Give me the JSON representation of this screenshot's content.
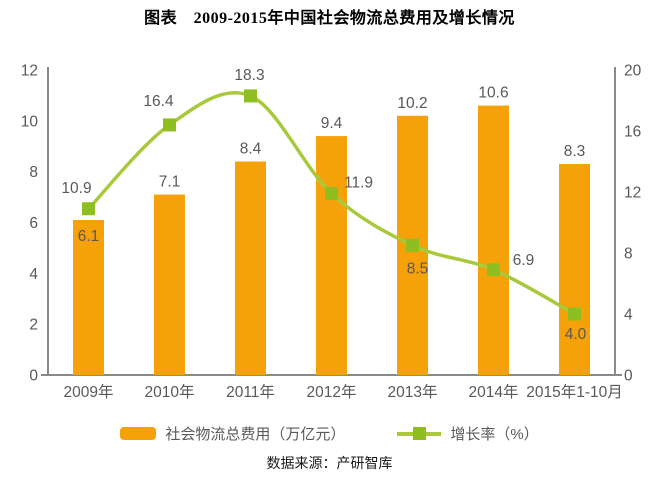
{
  "title": "图表　2009-2015年中国社会物流总费用及增长情况",
  "source": "数据来源：产研智库",
  "colors": {
    "bar": "#F4A10A",
    "line": "#A9C93C",
    "marker": "#8EBE20",
    "axis": "#8A8A8A",
    "tick_text": "#595959",
    "title_text": "#000000"
  },
  "chart_data": {
    "type": "bar",
    "subtype": "combo-bar-line-dual-axis",
    "title": "图表　2009-2015年中国社会物流总费用及增长情况",
    "categories": [
      "2009年",
      "2010年",
      "2011年",
      "2012年",
      "2013年",
      "2014年",
      "2015年1-10月"
    ],
    "series": [
      {
        "name": "社会物流总费用（万亿元）",
        "type": "bar",
        "axis": "left",
        "values": [
          6.1,
          7.1,
          8.4,
          9.4,
          10.2,
          10.6,
          8.3
        ]
      },
      {
        "name": "增长率（%）",
        "type": "line",
        "axis": "right",
        "values": [
          10.9,
          16.4,
          18.3,
          11.9,
          8.5,
          6.9,
          4.0
        ]
      }
    ],
    "left_axis": {
      "min": 0,
      "max": 12,
      "ticks": [
        0,
        2,
        4,
        6,
        8,
        10,
        12
      ]
    },
    "right_axis": {
      "min": 0,
      "max": 20,
      "ticks": [
        0,
        4,
        8,
        12,
        16,
        20
      ]
    },
    "grid": false,
    "legend_position": "bottom",
    "data_labels": true
  }
}
